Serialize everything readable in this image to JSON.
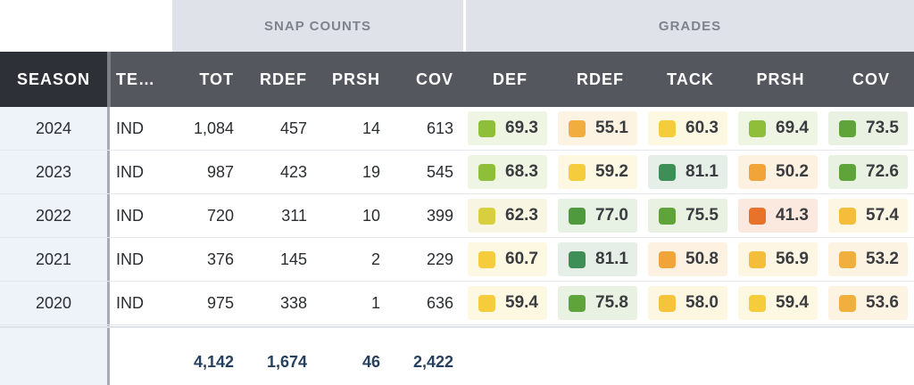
{
  "groups": {
    "snap_counts": "SNAP COUNTS",
    "grades": "GRADES"
  },
  "headers": {
    "season": "SEASON",
    "team": "TE…",
    "tot": "TOT",
    "rdef": "RDEF",
    "prsh": "PRSH",
    "cov": "COV",
    "g_def": "DEF",
    "g_rdef": "RDEF",
    "g_tack": "TACK",
    "g_prsh": "PRSH",
    "g_cov": "COV"
  },
  "rows": [
    {
      "season": "2024",
      "team": "IND",
      "tot": "1,084",
      "rdef": "457",
      "prsh": "14",
      "cov": "613",
      "grades": [
        {
          "value": "69.3",
          "color": "#8fbf3a",
          "bg": "#eef5e3"
        },
        {
          "value": "55.1",
          "color": "#f1ad3d",
          "bg": "#fdf3e3"
        },
        {
          "value": "60.3",
          "color": "#f5cc3c",
          "bg": "#fdf8e2"
        },
        {
          "value": "69.4",
          "color": "#8fbf3a",
          "bg": "#eef5e3"
        },
        {
          "value": "73.5",
          "color": "#5fa33b",
          "bg": "#e9f2e2"
        }
      ]
    },
    {
      "season": "2023",
      "team": "IND",
      "tot": "987",
      "rdef": "423",
      "prsh": "19",
      "cov": "545",
      "grades": [
        {
          "value": "68.3",
          "color": "#8fbf3a",
          "bg": "#eef5e3"
        },
        {
          "value": "59.2",
          "color": "#f5cc3c",
          "bg": "#fdf8e2"
        },
        {
          "value": "81.1",
          "color": "#3e8e57",
          "bg": "#e5efe8"
        },
        {
          "value": "50.2",
          "color": "#f1a43a",
          "bg": "#fdf1e2"
        },
        {
          "value": "72.6",
          "color": "#5fa33b",
          "bg": "#e9f2e2"
        }
      ]
    },
    {
      "season": "2022",
      "team": "IND",
      "tot": "720",
      "rdef": "311",
      "prsh": "10",
      "cov": "399",
      "grades": [
        {
          "value": "62.3",
          "color": "#d8cf3e",
          "bg": "#f8f6e2"
        },
        {
          "value": "77.0",
          "color": "#4f9a3d",
          "bg": "#e7f1e4"
        },
        {
          "value": "75.5",
          "color": "#5fa33b",
          "bg": "#e9f2e2"
        },
        {
          "value": "41.3",
          "color": "#e8722a",
          "bg": "#fbe8df"
        },
        {
          "value": "57.4",
          "color": "#f5be3a",
          "bg": "#fdf6e2"
        }
      ]
    },
    {
      "season": "2021",
      "team": "IND",
      "tot": "376",
      "rdef": "145",
      "prsh": "2",
      "cov": "229",
      "grades": [
        {
          "value": "60.7",
          "color": "#f5cc3c",
          "bg": "#fdf8e2"
        },
        {
          "value": "81.1",
          "color": "#3e8e57",
          "bg": "#e5efe8"
        },
        {
          "value": "50.8",
          "color": "#f1a43a",
          "bg": "#fdf1e2"
        },
        {
          "value": "56.9",
          "color": "#f5be3a",
          "bg": "#fdf6e2"
        },
        {
          "value": "53.2",
          "color": "#f1b03d",
          "bg": "#fdf3e3"
        }
      ]
    },
    {
      "season": "2020",
      "team": "IND",
      "tot": "975",
      "rdef": "338",
      "prsh": "1",
      "cov": "636",
      "grades": [
        {
          "value": "59.4",
          "color": "#f5cc3c",
          "bg": "#fdf8e2"
        },
        {
          "value": "75.8",
          "color": "#5fa33b",
          "bg": "#e9f2e2"
        },
        {
          "value": "58.0",
          "color": "#f5c43a",
          "bg": "#fdf7e2"
        },
        {
          "value": "59.4",
          "color": "#f5cc3c",
          "bg": "#fdf8e2"
        },
        {
          "value": "53.6",
          "color": "#f1b03d",
          "bg": "#fdf3e3"
        }
      ]
    }
  ],
  "totals": {
    "tot": "4,142",
    "rdef": "1,674",
    "prsh": "46",
    "cov": "2,422"
  }
}
